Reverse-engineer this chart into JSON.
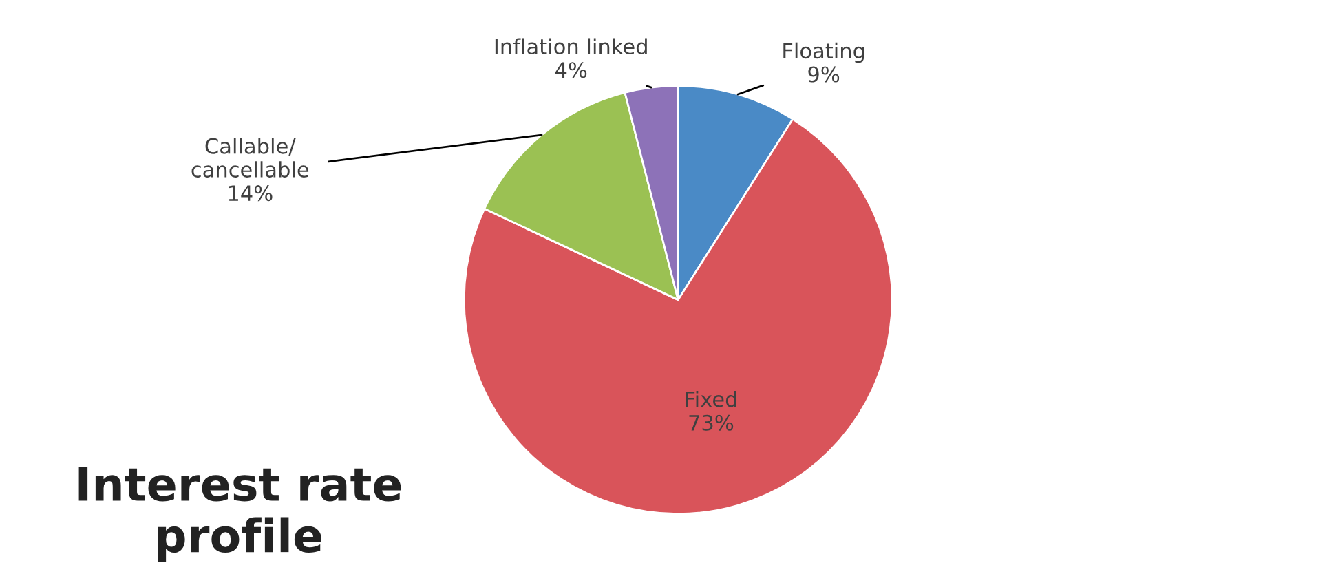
{
  "chart_data": {
    "type": "pie",
    "title": "Interest rate\nprofile",
    "categories": [
      "Floating",
      "Fixed",
      "Callable/\ncancellable",
      "Inflation linked"
    ],
    "values": [
      9,
      73,
      14,
      4
    ],
    "colors": [
      "#4a8ac6",
      "#d9545a",
      "#9bc153",
      "#8d72b8"
    ],
    "value_labels": [
      "9%",
      "73%",
      "14%",
      "4%"
    ],
    "legend": false
  }
}
